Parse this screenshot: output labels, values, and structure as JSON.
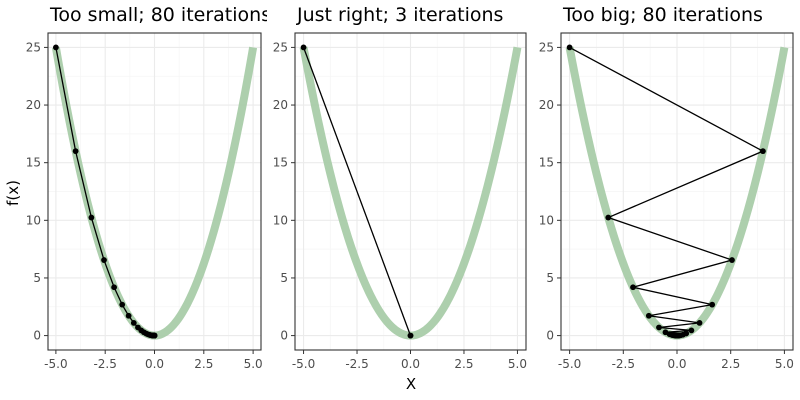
{
  "figure": {
    "ylabel": "f(x)",
    "xlabel": "X"
  },
  "chart_data": [
    {
      "type": "line",
      "title": "Too small; 80 iterations",
      "xlim": [
        -5.4,
        5.4
      ],
      "ylim": [
        -1.25,
        26.25
      ],
      "xticks": [
        -5.0,
        -2.5,
        0.0,
        2.5,
        5.0
      ],
      "xtick_labels": [
        "-5.0",
        "-2.5",
        "0.0",
        "2.5",
        "5.0"
      ],
      "yticks": [
        0,
        5,
        10,
        15,
        20,
        25
      ],
      "ytick_labels": [
        "0",
        "5",
        "10",
        "15",
        "20",
        "25"
      ],
      "grid": true,
      "curve": {
        "function": "x^2",
        "x_range": [
          -5,
          5
        ],
        "color": "#a9cca9"
      },
      "steps": {
        "x": [
          -5.0,
          -4.0,
          -3.2,
          -2.56,
          -2.048,
          -1.638,
          -1.311,
          -1.049,
          -0.839,
          -0.671,
          -0.537,
          -0.429,
          -0.344,
          -0.275,
          -0.22,
          -0.176,
          -0.141,
          -0.113,
          -0.09,
          -0.072,
          -0.058,
          -0.046,
          -0.037,
          -0.03,
          -0.024,
          -0.019,
          -0.015,
          -0.012,
          -0.01,
          -0.008,
          -0.006,
          -0.005,
          -0.004,
          -0.003,
          -0.002,
          -0.001,
          0.0
        ],
        "y": [
          25.0,
          16.0,
          10.24,
          6.554,
          4.194,
          2.684,
          1.718,
          1.1,
          0.704,
          0.45,
          0.288,
          0.184,
          0.118,
          0.076,
          0.048,
          0.031,
          0.02,
          0.013,
          0.008,
          0.005,
          0.003,
          0.002,
          0.001,
          0.001,
          0.001,
          0.0,
          0.0,
          0.0,
          0.0,
          0.0,
          0.0,
          0.0,
          0.0,
          0.0,
          0.0,
          0.0,
          0.0
        ]
      }
    },
    {
      "type": "line",
      "title": "Just right; 3 iterations",
      "xlim": [
        -5.4,
        5.4
      ],
      "ylim": [
        -1.25,
        26.25
      ],
      "xticks": [
        -5.0,
        -2.5,
        0.0,
        2.5,
        5.0
      ],
      "xtick_labels": [
        "-5.0",
        "-2.5",
        "0.0",
        "2.5",
        "5.0"
      ],
      "yticks": [
        0,
        5,
        10,
        15,
        20,
        25
      ],
      "ytick_labels": [
        "0",
        "5",
        "10",
        "15",
        "20",
        "25"
      ],
      "grid": true,
      "curve": {
        "function": "x^2",
        "x_range": [
          -5,
          5
        ],
        "color": "#a9cca9"
      },
      "steps": {
        "x": [
          -5.0,
          0.0,
          0.0
        ],
        "y": [
          25.0,
          0.0,
          0.0
        ]
      }
    },
    {
      "type": "line",
      "title": "Too big; 80 iterations",
      "xlim": [
        -5.4,
        5.4
      ],
      "ylim": [
        -1.25,
        26.25
      ],
      "xticks": [
        -5.0,
        -2.5,
        0.0,
        2.5,
        5.0
      ],
      "xtick_labels": [
        "-5.0",
        "-2.5",
        "0.0",
        "2.5",
        "5.0"
      ],
      "yticks": [
        0,
        5,
        10,
        15,
        20,
        25
      ],
      "ytick_labels": [
        "0",
        "5",
        "10",
        "15",
        "20",
        "25"
      ],
      "grid": true,
      "curve": {
        "function": "x^2",
        "x_range": [
          -5,
          5
        ],
        "color": "#a9cca9"
      },
      "steps": {
        "x": [
          -5.0,
          4.0,
          -3.2,
          2.56,
          -2.048,
          1.638,
          -1.311,
          1.049,
          -0.839,
          0.671,
          -0.537,
          0.429,
          -0.344,
          0.275,
          -0.22,
          0.176,
          -0.141,
          0.113,
          -0.09,
          0.072,
          -0.058,
          0.046,
          -0.037,
          0.03,
          -0.024,
          0.019,
          -0.015,
          0.012,
          -0.01,
          0.008,
          -0.006,
          0.005,
          -0.004,
          0.003,
          -0.002,
          0.001,
          0.0
        ],
        "y": [
          25.0,
          16.0,
          10.24,
          6.554,
          4.194,
          2.684,
          1.718,
          1.1,
          0.704,
          0.45,
          0.288,
          0.184,
          0.118,
          0.076,
          0.048,
          0.031,
          0.02,
          0.013,
          0.008,
          0.005,
          0.003,
          0.002,
          0.001,
          0.001,
          0.001,
          0.0,
          0.0,
          0.0,
          0.0,
          0.0,
          0.0,
          0.0,
          0.0,
          0.0,
          0.0,
          0.0,
          0.0
        ]
      }
    }
  ]
}
